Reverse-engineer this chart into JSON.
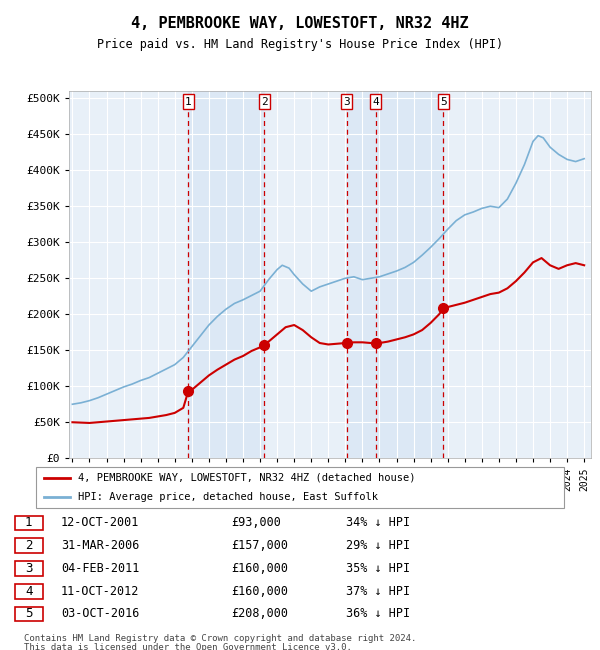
{
  "title": "4, PEMBROOKE WAY, LOWESTOFT, NR32 4HZ",
  "subtitle": "Price paid vs. HM Land Registry's House Price Index (HPI)",
  "background_color": "#ffffff",
  "chart_bg_color": "#e8f0f8",
  "grid_color": "#ffffff",
  "sale_dates_x": [
    2001.79,
    2006.25,
    2011.09,
    2012.79,
    2016.75
  ],
  "sale_prices_y": [
    93000,
    157000,
    160000,
    160000,
    208000
  ],
  "sale_labels": [
    "1",
    "2",
    "3",
    "4",
    "5"
  ],
  "sale_info": [
    {
      "label": "1",
      "date": "12-OCT-2001",
      "price": "£93,000",
      "pct": "34% ↓ HPI"
    },
    {
      "label": "2",
      "date": "31-MAR-2006",
      "price": "£157,000",
      "pct": "29% ↓ HPI"
    },
    {
      "label": "3",
      "date": "04-FEB-2011",
      "price": "£160,000",
      "pct": "35% ↓ HPI"
    },
    {
      "label": "4",
      "date": "11-OCT-2012",
      "price": "£160,000",
      "pct": "37% ↓ HPI"
    },
    {
      "label": "5",
      "date": "03-OCT-2016",
      "price": "£208,000",
      "pct": "36% ↓ HPI"
    }
  ],
  "legend_red_label": "4, PEMBROOKE WAY, LOWESTOFT, NR32 4HZ (detached house)",
  "legend_blue_label": "HPI: Average price, detached house, East Suffolk",
  "footer_line1": "Contains HM Land Registry data © Crown copyright and database right 2024.",
  "footer_line2": "This data is licensed under the Open Government Licence v3.0.",
  "red_color": "#cc0000",
  "blue_color": "#7ab0d4",
  "shading_color": "#dce8f5",
  "ylim_max": 510000,
  "xlim_start": 1994.8,
  "xlim_end": 2025.4,
  "hpi_x": [
    1995.0,
    1995.5,
    1996.0,
    1996.5,
    1997.0,
    1997.5,
    1998.0,
    1998.5,
    1999.0,
    1999.5,
    2000.0,
    2000.5,
    2001.0,
    2001.5,
    2002.0,
    2002.5,
    2003.0,
    2003.5,
    2004.0,
    2004.5,
    2005.0,
    2005.5,
    2006.0,
    2006.5,
    2007.0,
    2007.3,
    2007.7,
    2008.0,
    2008.5,
    2009.0,
    2009.5,
    2010.0,
    2010.5,
    2011.0,
    2011.5,
    2012.0,
    2012.5,
    2013.0,
    2013.5,
    2014.0,
    2014.5,
    2015.0,
    2015.5,
    2016.0,
    2016.5,
    2017.0,
    2017.5,
    2018.0,
    2018.5,
    2019.0,
    2019.5,
    2020.0,
    2020.5,
    2021.0,
    2021.5,
    2022.0,
    2022.3,
    2022.6,
    2023.0,
    2023.5,
    2024.0,
    2024.5,
    2025.0
  ],
  "hpi_y": [
    75000,
    77000,
    80000,
    84000,
    89000,
    94000,
    99000,
    103000,
    108000,
    112000,
    118000,
    124000,
    130000,
    140000,
    155000,
    170000,
    185000,
    197000,
    207000,
    215000,
    220000,
    226000,
    232000,
    248000,
    262000,
    268000,
    264000,
    255000,
    242000,
    232000,
    238000,
    242000,
    246000,
    250000,
    252000,
    248000,
    250000,
    252000,
    256000,
    260000,
    265000,
    272000,
    282000,
    293000,
    305000,
    318000,
    330000,
    338000,
    342000,
    347000,
    350000,
    348000,
    360000,
    382000,
    408000,
    440000,
    448000,
    445000,
    432000,
    422000,
    415000,
    412000,
    416000
  ],
  "red_x": [
    1995.0,
    1995.5,
    1996.0,
    1996.5,
    1997.0,
    1997.5,
    1998.0,
    1998.5,
    1999.0,
    1999.5,
    2000.0,
    2000.5,
    2001.0,
    2001.5,
    2001.79,
    2002.0,
    2002.5,
    2003.0,
    2003.5,
    2004.0,
    2004.5,
    2005.0,
    2005.5,
    2006.0,
    2006.25,
    2006.5,
    2007.0,
    2007.5,
    2008.0,
    2008.5,
    2009.0,
    2009.5,
    2010.0,
    2010.5,
    2011.0,
    2011.09,
    2011.5,
    2012.0,
    2012.5,
    2012.79,
    2013.0,
    2013.5,
    2014.0,
    2014.5,
    2015.0,
    2015.5,
    2016.0,
    2016.5,
    2016.75,
    2017.0,
    2017.5,
    2018.0,
    2018.5,
    2019.0,
    2019.5,
    2020.0,
    2020.5,
    2021.0,
    2021.5,
    2022.0,
    2022.5,
    2023.0,
    2023.5,
    2024.0,
    2024.5,
    2025.0
  ],
  "red_y": [
    50000,
    49500,
    49000,
    50000,
    51000,
    52000,
    53000,
    54000,
    55000,
    56000,
    58000,
    60000,
    63000,
    70000,
    93000,
    95000,
    105000,
    115000,
    123000,
    130000,
    137000,
    142000,
    149000,
    154000,
    157000,
    162000,
    172000,
    182000,
    185000,
    178000,
    168000,
    160000,
    158000,
    159000,
    160000,
    160000,
    161000,
    161000,
    160000,
    160000,
    160000,
    162000,
    165000,
    168000,
    172000,
    178000,
    188000,
    200000,
    208000,
    210000,
    213000,
    216000,
    220000,
    224000,
    228000,
    230000,
    236000,
    246000,
    258000,
    272000,
    278000,
    268000,
    263000,
    268000,
    271000,
    268000
  ]
}
